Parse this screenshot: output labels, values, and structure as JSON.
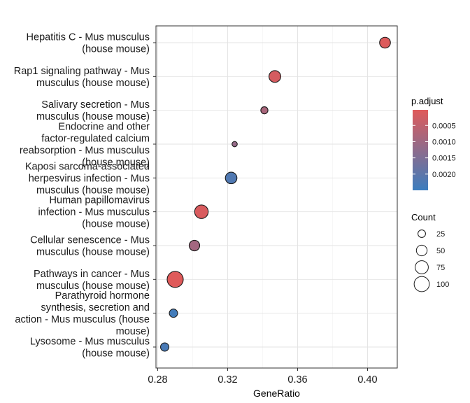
{
  "chart_data": {
    "type": "scatter",
    "xlabel": "GeneRatio",
    "xticks": [
      0.28,
      0.32,
      0.36,
      0.4
    ],
    "xlim": [
      0.279,
      0.417
    ],
    "grid": true,
    "points": [
      {
        "label": "Hepatitis C - Mus musculus (house mouse)",
        "label_lines": [
          "Hepatitis C - Mus musculus",
          "(house mouse)"
        ],
        "x": 0.41,
        "count": 51,
        "p_adjust": 8e-05
      },
      {
        "label": "Rap1 signaling pathway - Mus musculus (house mouse)",
        "label_lines": [
          "Rap1 signaling pathway - Mus",
          "musculus (house mouse)"
        ],
        "x": 0.347,
        "count": 60,
        "p_adjust": 0.00018
      },
      {
        "label": "Salivary secretion - Mus musculus (house mouse)",
        "label_lines": [
          "Salivary secretion - Mus",
          "musculus (house mouse)"
        ],
        "x": 0.341,
        "count": 22,
        "p_adjust": 0.00085
      },
      {
        "label": "Endocrine and other factor-regulated calcium reabsorption - Mus musculus (house mouse)",
        "label_lines": [
          "Endocrine and other",
          "factor-regulated calcium",
          "reabsorption - Mus musculus",
          "(house mouse)"
        ],
        "x": 0.324,
        "count": 12,
        "p_adjust": 0.00115
      },
      {
        "label": "Kaposi sarcoma-associated herpesvirus infection - Mus musculus (house mouse)",
        "label_lines": [
          "Kaposi sarcoma-associated",
          "herpesvirus infection - Mus",
          "musculus (house mouse)"
        ],
        "x": 0.322,
        "count": 58,
        "p_adjust": 0.0022
      },
      {
        "label": "Human papillomavirus infection - Mus musculus (house mouse)",
        "label_lines": [
          "Human papillomavirus",
          "infection - Mus musculus",
          "(house mouse)"
        ],
        "x": 0.305,
        "count": 80,
        "p_adjust": 0.00012
      },
      {
        "label": "Cellular senescence - Mus musculus (house mouse)",
        "label_lines": [
          "Cellular senescence - Mus",
          "musculus (house mouse)"
        ],
        "x": 0.301,
        "count": 48,
        "p_adjust": 0.00095
      },
      {
        "label": "Pathways in cancer - Mus musculus (house mouse)",
        "label_lines": [
          "Pathways in cancer - Mus",
          "musculus (house mouse)"
        ],
        "x": 0.29,
        "count": 112,
        "p_adjust": 3e-05
      },
      {
        "label": "Parathyroid hormone synthesis, secretion and action - Mus musculus (house mouse)",
        "label_lines": [
          "Parathyroid hormone",
          "synthesis, secretion and",
          "action - Mus musculus (house",
          "mouse)"
        ],
        "x": 0.289,
        "count": 30,
        "p_adjust": 0.0024
      },
      {
        "label": "Lysosome - Mus musculus (house mouse)",
        "label_lines": [
          "Lysosome - Mus musculus",
          "(house mouse)"
        ],
        "x": 0.284,
        "count": 30,
        "p_adjust": 0.0023
      }
    ],
    "color_legend": {
      "title": "p.adjust",
      "ticks": [
        0.0005,
        0.001,
        0.0015,
        0.002
      ],
      "tick_labels": [
        "0.0005",
        "0.0010",
        "0.0015",
        "0.0020"
      ],
      "range": [
        2e-05,
        0.0025
      ],
      "low_color": "#E05A5A",
      "high_color": "#3C7DBE"
    },
    "size_legend": {
      "title": "Count",
      "values": [
        25,
        50,
        75,
        100
      ],
      "labels": [
        "25",
        "50",
        "75",
        "100"
      ],
      "max_count": 112
    },
    "legend_position": "right"
  }
}
